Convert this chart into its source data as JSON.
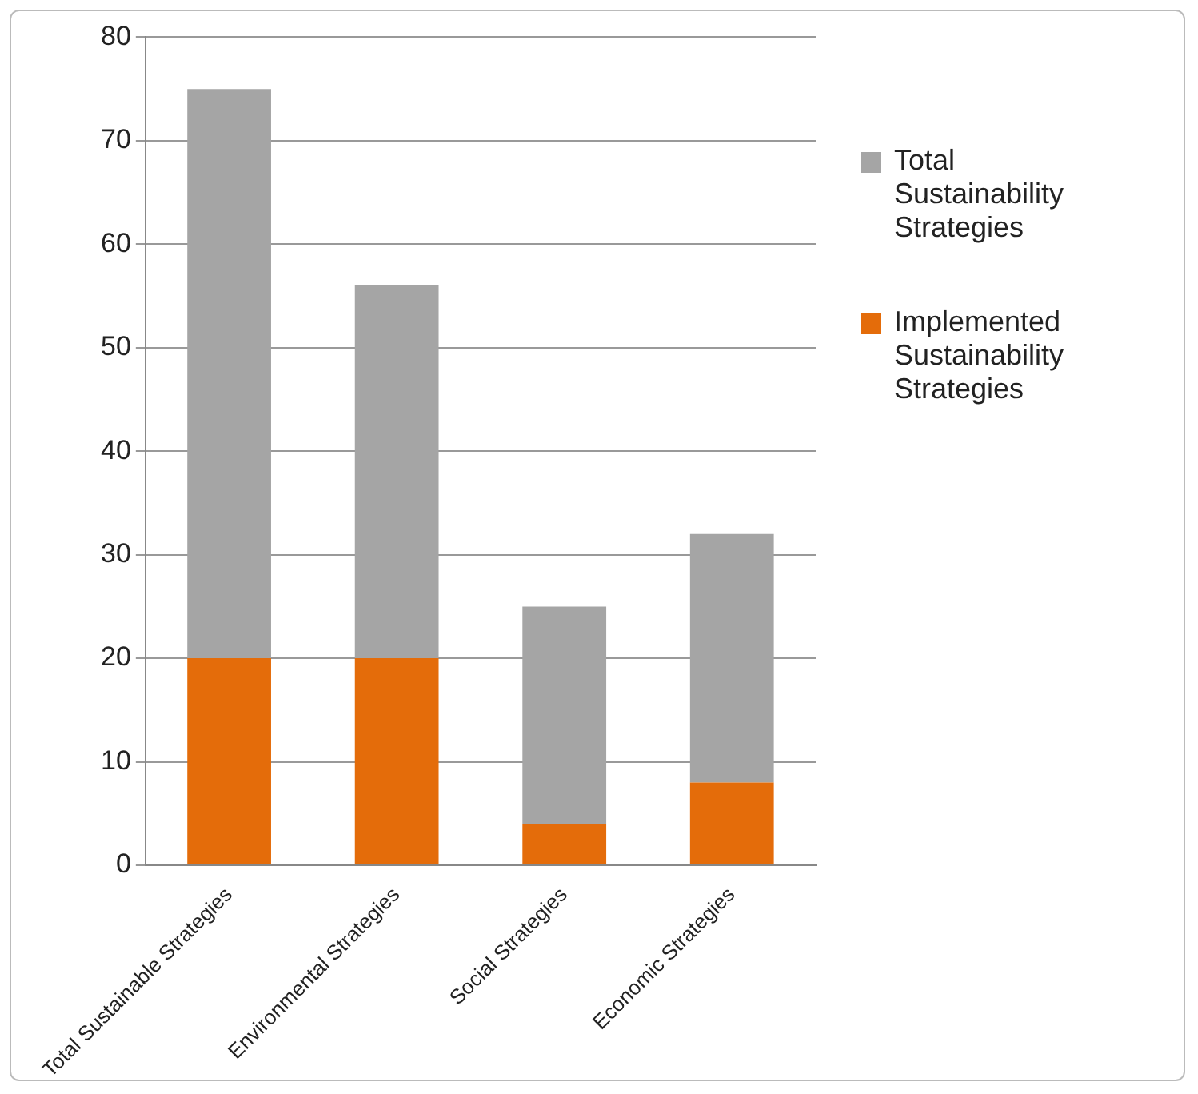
{
  "chart_data": {
    "type": "bar",
    "stacked": true,
    "categories": [
      "Total Sustainable Strategies",
      "Environmental Strategies",
      "Social Strategies",
      "Economic Strategies"
    ],
    "series": [
      {
        "name": "Implemented Sustainability Strategies",
        "color": "#e46c0a",
        "values": [
          20,
          20,
          4,
          8
        ]
      },
      {
        "name": "Total Sustainability Strategies",
        "color": "#a5a5a5",
        "values": [
          55,
          36,
          21,
          24
        ]
      }
    ],
    "ylim": [
      0,
      80
    ],
    "yticks": [
      0,
      10,
      20,
      30,
      40,
      50,
      60,
      70,
      80
    ],
    "grid": "y",
    "legend": "right"
  }
}
